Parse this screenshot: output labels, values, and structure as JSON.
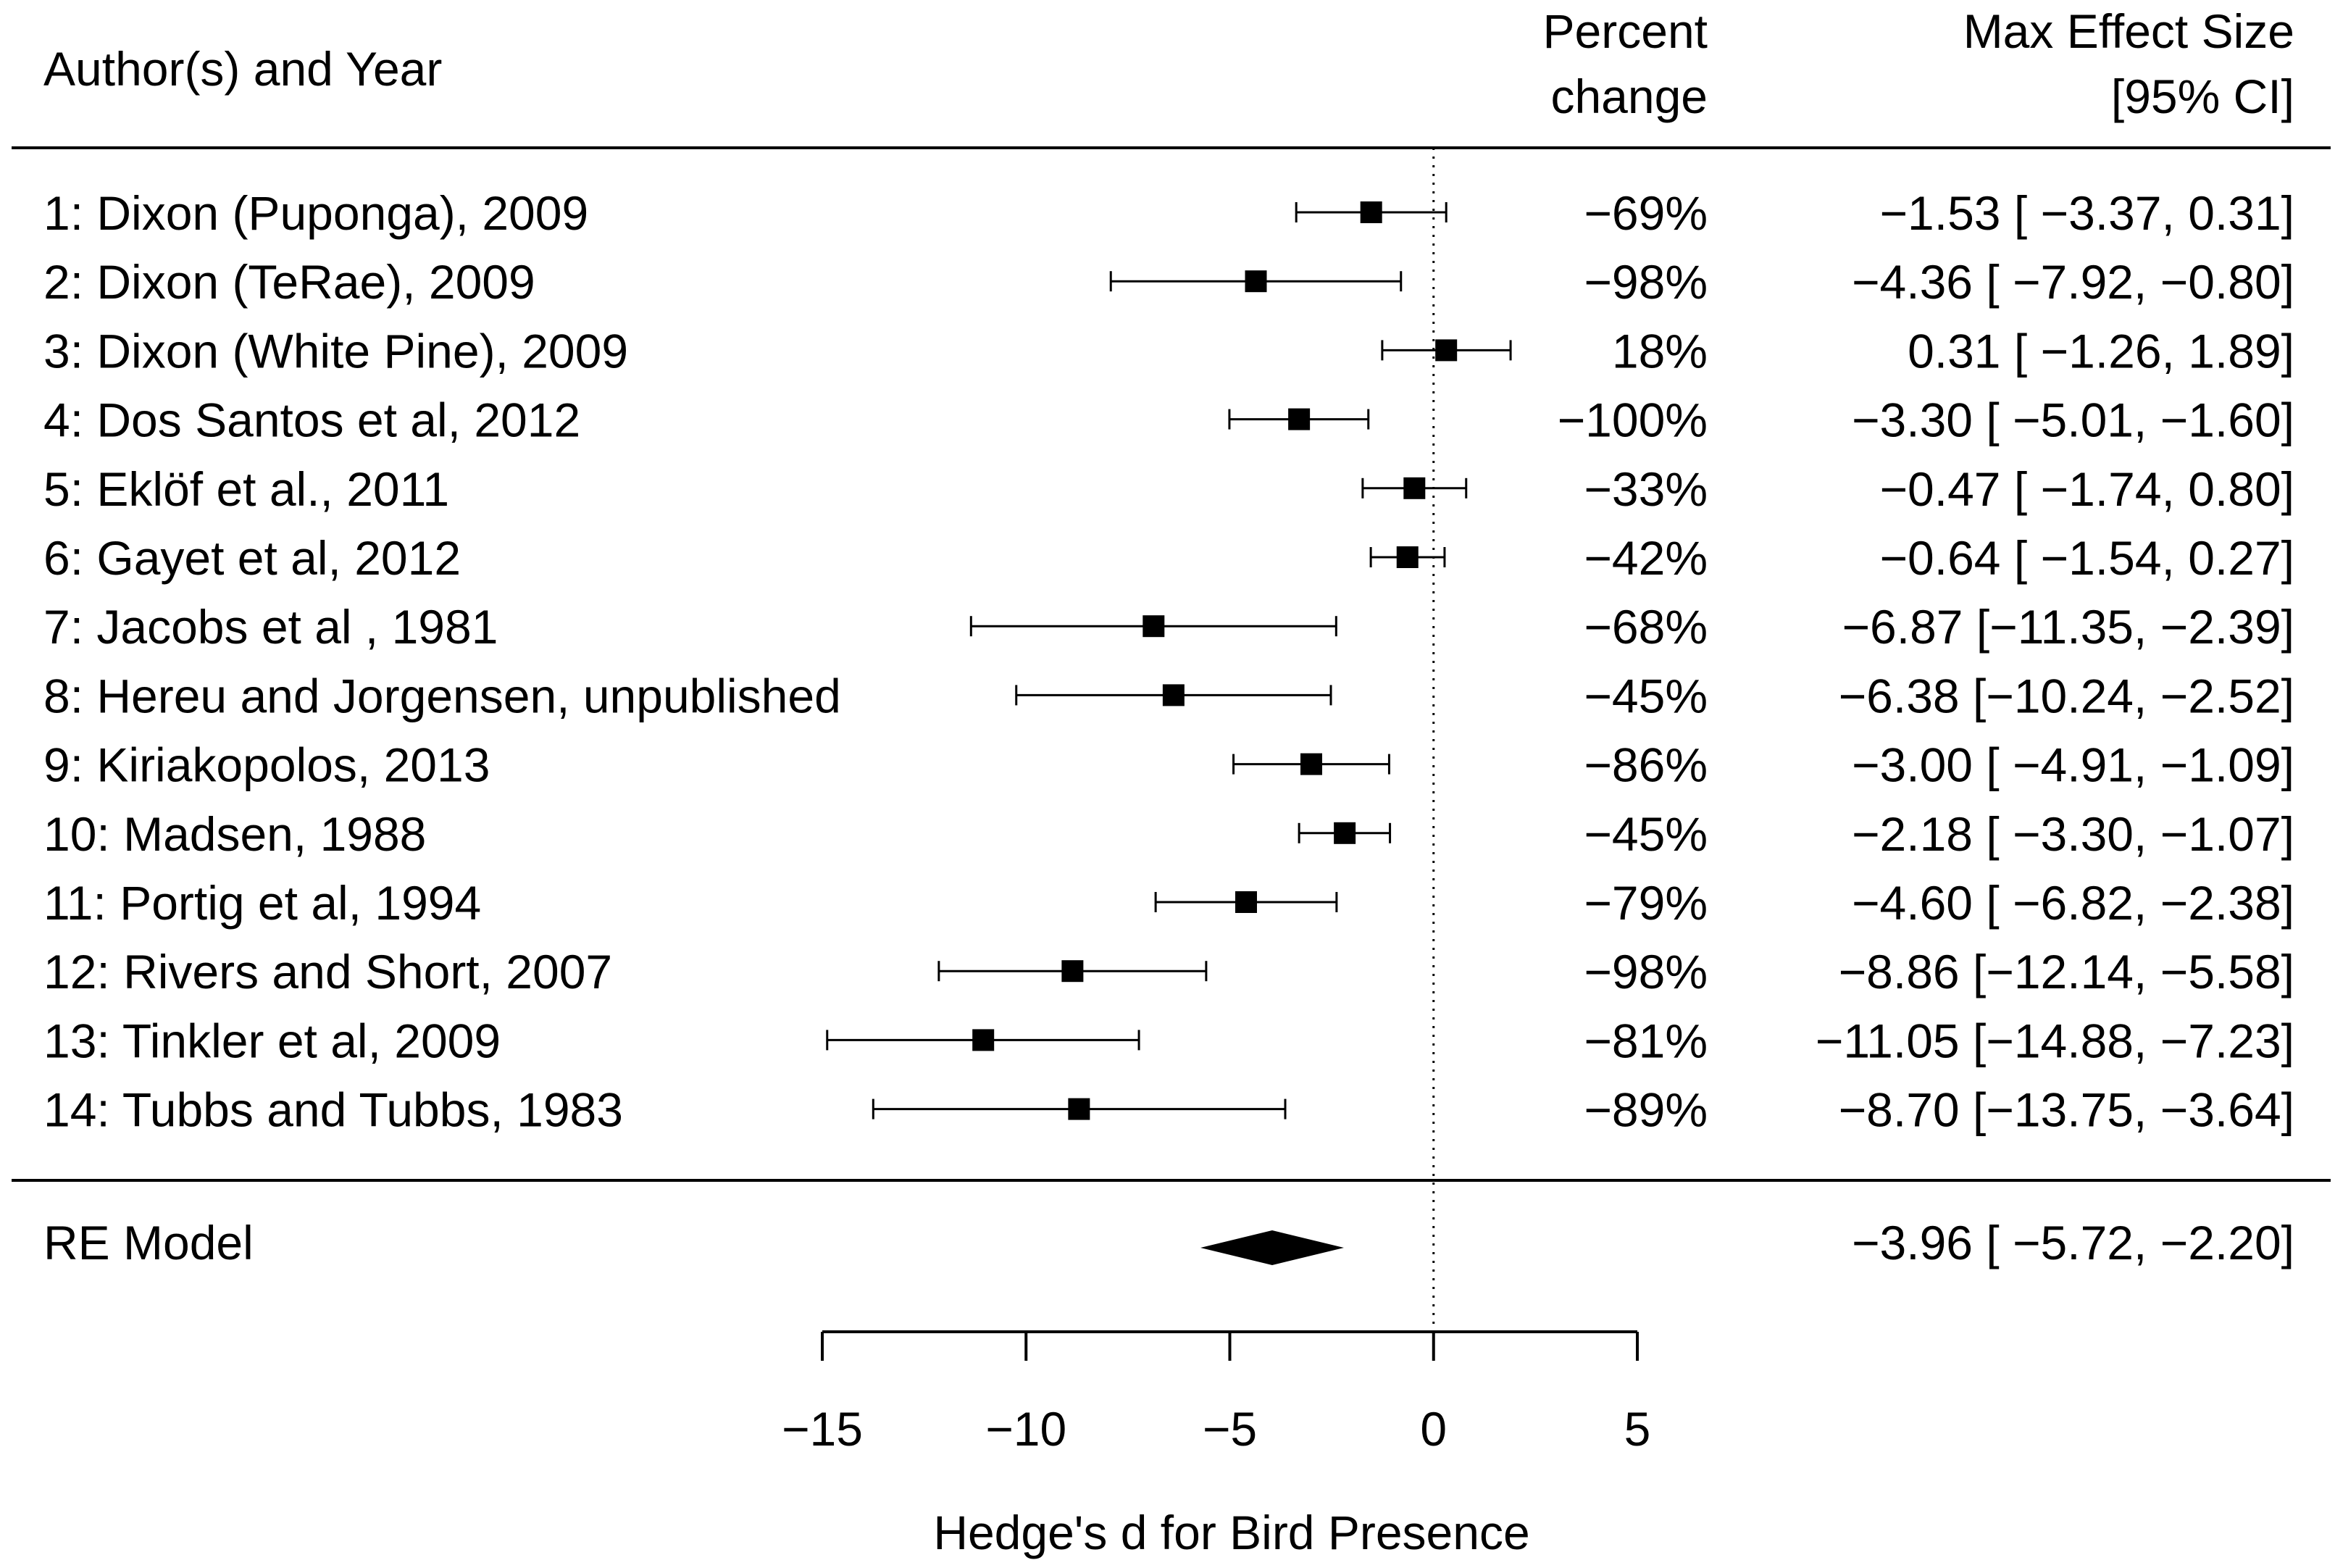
{
  "chart_data": {
    "type": "forest",
    "headers": {
      "study": "Author(s) and Year",
      "percent_line1": "Percent",
      "percent_line2": "change",
      "effect_line1": "Max Effect Size",
      "effect_line2": "[95% CI]"
    },
    "studies": [
      {
        "label": "1: Dixon (Puponga), 2009",
        "percent": "−69%",
        "estimate": -1.53,
        "lower": -3.37,
        "upper": 0.31,
        "effect_text": "−1.53 [ −3.37,  0.31]"
      },
      {
        "label": "2: Dixon (TeRae), 2009",
        "percent": "−98%",
        "estimate": -4.36,
        "lower": -7.92,
        "upper": -0.8,
        "effect_text": "−4.36 [ −7.92, −0.80]"
      },
      {
        "label": "3: Dixon (White Pine), 2009",
        "percent": "18%",
        "estimate": 0.31,
        "lower": -1.26,
        "upper": 1.89,
        "effect_text": "0.31 [ −1.26,  1.89]"
      },
      {
        "label": "4: Dos Santos et al, 2012",
        "percent": "−100%",
        "estimate": -3.3,
        "lower": -5.01,
        "upper": -1.6,
        "effect_text": "−3.30 [ −5.01, −1.60]"
      },
      {
        "label": "5: Eklöf et al., 2011",
        "percent": "−33%",
        "estimate": -0.47,
        "lower": -1.74,
        "upper": 0.8,
        "effect_text": "−0.47 [ −1.74,  0.80]"
      },
      {
        "label": "6: Gayet et al, 2012",
        "percent": "−42%",
        "estimate": -0.64,
        "lower": -1.54,
        "upper": 0.27,
        "effect_text": "−0.64 [ −1.54,  0.27]"
      },
      {
        "label": "7: Jacobs et al , 1981",
        "percent": "−68%",
        "estimate": -6.87,
        "lower": -11.35,
        "upper": -2.39,
        "effect_text": "−6.87 [−11.35, −2.39]"
      },
      {
        "label": "8: Hereu and Jorgensen, unpublished",
        "percent": "−45%",
        "estimate": -6.38,
        "lower": -10.24,
        "upper": -2.52,
        "effect_text": "−6.38 [−10.24, −2.52]"
      },
      {
        "label": "9: Kiriakopolos, 2013",
        "percent": "−86%",
        "estimate": -3.0,
        "lower": -4.91,
        "upper": -1.09,
        "effect_text": "−3.00 [ −4.91, −1.09]"
      },
      {
        "label": "10: Madsen, 1988",
        "percent": "−45%",
        "estimate": -2.18,
        "lower": -3.3,
        "upper": -1.07,
        "effect_text": "−2.18 [ −3.30, −1.07]"
      },
      {
        "label": "11: Portig et al, 1994",
        "percent": "−79%",
        "estimate": -4.6,
        "lower": -6.82,
        "upper": -2.38,
        "effect_text": "−4.60 [ −6.82, −2.38]"
      },
      {
        "label": "12: Rivers and Short, 2007",
        "percent": "−98%",
        "estimate": -8.86,
        "lower": -12.14,
        "upper": -5.58,
        "effect_text": "−8.86 [−12.14, −5.58]"
      },
      {
        "label": "13: Tinkler et al, 2009",
        "percent": "−81%",
        "estimate": -11.05,
        "lower": -14.88,
        "upper": -7.23,
        "effect_text": "−11.05 [−14.88, −7.23]"
      },
      {
        "label": "14: Tubbs and Tubbs, 1983",
        "percent": "−89%",
        "estimate": -8.7,
        "lower": -13.75,
        "upper": -3.64,
        "effect_text": "−8.70 [−13.75, −3.64]"
      }
    ],
    "summary": {
      "label": "RE Model",
      "estimate": -3.96,
      "lower": -5.72,
      "upper": -2.2,
      "effect_text": "−3.96 [ −5.72, −2.20]"
    },
    "xaxis": {
      "label": "Hedge's d for Bird Presence",
      "range": [
        -15,
        5
      ],
      "ticks": [
        -15,
        -10,
        -5,
        0,
        5
      ],
      "tick_labels": [
        "−15",
        "−10",
        "−5",
        "0",
        "5"
      ]
    },
    "reference_line": 0
  }
}
